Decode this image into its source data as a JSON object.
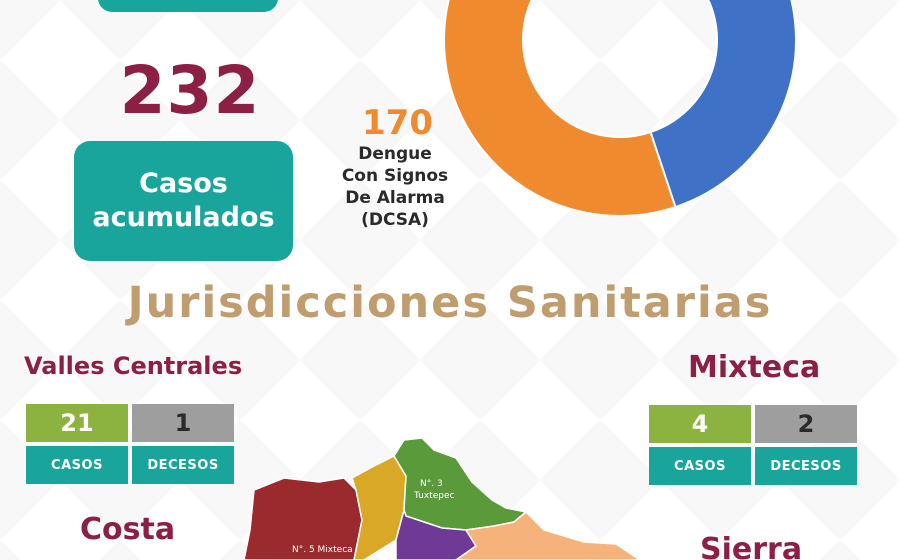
{
  "summary": {
    "total_cases": "232",
    "accumulated_label_line1": "Casos",
    "accumulated_label_line2": "acumulados"
  },
  "dcsa": {
    "count": "170",
    "label_line1": "Dengue",
    "label_line2": "Con Signos",
    "label_line3": "De Alarma",
    "label_line4": "(DCSA)"
  },
  "donut": {
    "segments": [
      {
        "value": 170,
        "color": "#f08a2e"
      },
      {
        "value": 62,
        "color": "#3f72c6"
      }
    ]
  },
  "section_title": "Jurisdicciones Sanitarias",
  "regions": {
    "valles": {
      "name": "Valles Centrales",
      "cases": "21",
      "deaths": "1",
      "cases_label": "CASOS",
      "deaths_label": "DECESOS"
    },
    "mixteca": {
      "name": "Mixteca",
      "cases": "4",
      "deaths": "2",
      "cases_label": "CASOS",
      "deaths_label": "DECESOS"
    },
    "costa": {
      "name": "Costa"
    },
    "sierra": {
      "name": "Sierra"
    }
  },
  "map": {
    "label_tuxtepec_line1": "N°. 3",
    "label_tuxtepec_line2": "Tuxtepec",
    "label_mixteca": "N°. 5 Mixteca"
  },
  "colors": {
    "teal": "#1aa59c",
    "wine": "#8c1f44",
    "gold": "#bf9d6e",
    "orange": "#f08a2e",
    "green": "#8cb23f",
    "gray": "#9e9e9e"
  }
}
